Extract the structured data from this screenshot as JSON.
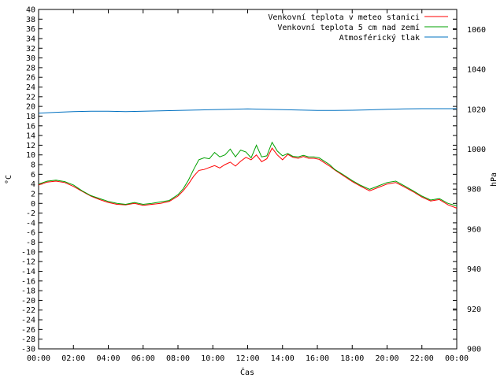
{
  "chart_data": {
    "type": "line",
    "xlabel": "Čas",
    "ylabel": "°C",
    "y2label": "hPa",
    "x_ticks": [
      "00:00",
      "02:00",
      "04:00",
      "06:00",
      "08:00",
      "10:00",
      "12:00",
      "14:00",
      "16:00",
      "18:00",
      "20:00",
      "22:00",
      "00:00"
    ],
    "xlim": [
      0,
      24
    ],
    "ylim": [
      -30,
      40
    ],
    "y_ticks": [
      -30,
      -28,
      -26,
      -24,
      -22,
      -20,
      -18,
      -16,
      -14,
      -12,
      -10,
      -8,
      -6,
      -4,
      -2,
      0,
      2,
      4,
      6,
      8,
      10,
      12,
      14,
      16,
      18,
      20,
      22,
      24,
      26,
      28,
      30,
      32,
      34,
      36,
      38,
      40
    ],
    "y2lim": [
      900,
      1070
    ],
    "y2_ticks": [
      900,
      920,
      940,
      960,
      980,
      1000,
      1020,
      1040,
      1060
    ],
    "legend_position": "top-right",
    "grid": false,
    "series": [
      {
        "name": "Venkovní teplota v meteo stanici",
        "color": "#ff0000",
        "axis": "left",
        "x": [
          0,
          0.5,
          1,
          1.5,
          2,
          2.5,
          3,
          3.5,
          4,
          4.5,
          5,
          5.5,
          6,
          6.5,
          7,
          7.5,
          8,
          8.3,
          8.6,
          8.9,
          9.2,
          9.5,
          9.8,
          10.1,
          10.4,
          10.7,
          11,
          11.3,
          11.6,
          11.9,
          12.2,
          12.5,
          12.8,
          13.1,
          13.4,
          13.7,
          14,
          14.3,
          14.6,
          14.9,
          15.2,
          15.5,
          15.8,
          16.1,
          16.4,
          16.7,
          17,
          17.5,
          18,
          18.5,
          19,
          19.5,
          20,
          20.5,
          21,
          21.5,
          22,
          22.5,
          23,
          23.5,
          24
        ],
        "y": [
          3.8,
          4.4,
          4.6,
          4.3,
          3.5,
          2.5,
          1.5,
          0.8,
          0.2,
          -0.2,
          -0.3,
          0.0,
          -0.4,
          -0.2,
          0.0,
          0.4,
          1.5,
          2.6,
          4.0,
          5.6,
          6.8,
          7.0,
          7.4,
          7.8,
          7.3,
          8.0,
          8.5,
          7.7,
          8.7,
          9.5,
          9.0,
          10.0,
          8.6,
          9.2,
          11.4,
          10.0,
          9.0,
          10.1,
          9.5,
          9.3,
          9.7,
          9.3,
          9.3,
          9.1,
          8.4,
          7.7,
          6.9,
          5.7,
          4.5,
          3.5,
          2.6,
          3.3,
          4.0,
          4.3,
          3.4,
          2.4,
          1.3,
          0.5,
          0.8,
          -0.3,
          -1.0
        ]
      },
      {
        "name": "Venkovní teplota 5 cm nad zemí",
        "color": "#00a000",
        "axis": "left",
        "x": [
          0,
          0.5,
          1,
          1.5,
          2,
          2.5,
          3,
          3.5,
          4,
          4.5,
          5,
          5.5,
          6,
          6.5,
          7,
          7.5,
          8,
          8.3,
          8.6,
          8.9,
          9.2,
          9.5,
          9.8,
          10.1,
          10.4,
          10.7,
          11,
          11.3,
          11.6,
          11.9,
          12.2,
          12.5,
          12.8,
          13.1,
          13.4,
          13.7,
          14,
          14.3,
          14.6,
          14.9,
          15.2,
          15.5,
          15.8,
          16.1,
          16.4,
          16.7,
          17,
          17.5,
          18,
          18.5,
          19,
          19.5,
          20,
          20.5,
          21,
          21.5,
          22,
          22.5,
          23,
          23.5,
          24
        ],
        "y": [
          4.0,
          4.6,
          4.8,
          4.5,
          3.8,
          2.6,
          1.6,
          1.0,
          0.4,
          0.0,
          -0.2,
          0.2,
          -0.2,
          0.0,
          0.3,
          0.6,
          1.8,
          3.0,
          4.8,
          7.0,
          9.0,
          9.4,
          9.2,
          10.5,
          9.6,
          10.0,
          11.2,
          9.6,
          11.0,
          10.6,
          9.4,
          12.0,
          9.6,
          9.8,
          12.6,
          10.8,
          9.8,
          10.3,
          9.7,
          9.6,
          9.9,
          9.6,
          9.6,
          9.4,
          8.7,
          8.0,
          7.0,
          5.9,
          4.7,
          3.7,
          2.9,
          3.6,
          4.3,
          4.6,
          3.6,
          2.6,
          1.5,
          0.7,
          1.0,
          0.0,
          -0.5
        ]
      },
      {
        "name": "Atmosférický tlak",
        "color": "#0070c0",
        "axis": "right",
        "x": [
          0,
          1,
          2,
          3,
          4,
          5,
          6,
          7,
          8,
          9,
          10,
          11,
          12,
          13,
          14,
          15,
          16,
          17,
          18,
          19,
          20,
          21,
          22,
          23,
          24
        ],
        "y": [
          1018,
          1018.5,
          1018.8,
          1019,
          1019,
          1018.8,
          1019,
          1019.2,
          1019.4,
          1019.6,
          1019.8,
          1020,
          1020.2,
          1020,
          1019.8,
          1019.6,
          1019.4,
          1019.4,
          1019.5,
          1019.7,
          1020,
          1020.2,
          1020.3,
          1020.3,
          1020.3
        ]
      }
    ]
  }
}
